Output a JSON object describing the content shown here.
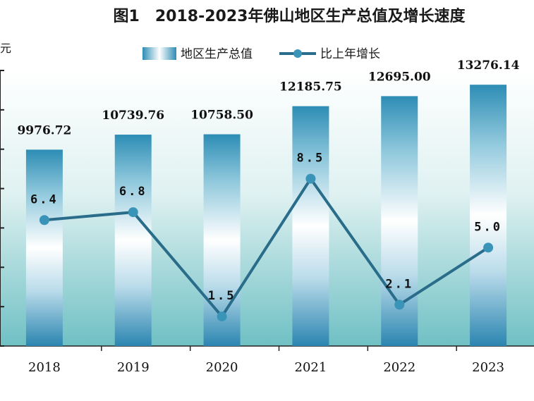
{
  "chart_data": {
    "type": "bar",
    "title": "图1　2018-2023年佛山地区生产总值及增长速度",
    "unit": "亿元",
    "categories": [
      "2018",
      "2019",
      "2020",
      "2021",
      "2022",
      "2023"
    ],
    "series": [
      {
        "name": "地区生产总值",
        "kind": "bar",
        "axis": "left",
        "values": [
          9976.72,
          10739.76,
          10758.5,
          12185.75,
          12695.0,
          13276.14
        ],
        "labels": [
          "9976.72",
          "10739.76",
          "10758.50",
          "12185.75",
          "12695.00",
          "13276.14"
        ]
      },
      {
        "name": "比上年增长",
        "kind": "line",
        "axis": "right",
        "values": [
          6.4,
          6.8,
          1.5,
          8.5,
          2.1,
          5.0
        ],
        "labels": [
          "6.4",
          "6.8",
          "1.5",
          "8.5",
          "2.1",
          "5.0"
        ]
      }
    ],
    "ylim": [
      0,
      14000
    ],
    "y2lim": [
      0,
      14
    ],
    "colors": {
      "bar_dark": "#2b8fb4",
      "bar_light": "#ffffff",
      "line": "#2a6d8a",
      "marker": "#3a94b8",
      "bg_top": "#ffffff",
      "bg_bottom": "#7cc6c9"
    }
  }
}
